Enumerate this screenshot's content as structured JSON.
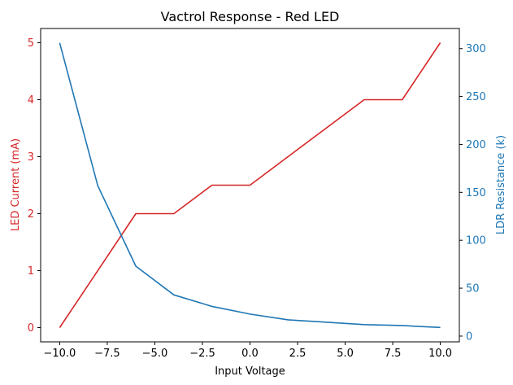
{
  "chart_data": {
    "type": "line",
    "title": "Vactrol Response - Red LED",
    "xlabel": "Input Voltage",
    "xlim": [
      -11.0,
      11.0
    ],
    "xticks": [
      -10.0,
      -7.5,
      -5.0,
      -2.5,
      0.0,
      2.5,
      5.0,
      7.5,
      10.0
    ],
    "xtick_labels": [
      "−10.0",
      "−7.5",
      "−5.0",
      "−2.5",
      "0.0",
      "2.5",
      "5.0",
      "7.5",
      "10.0"
    ],
    "axes": {
      "left": {
        "label": "LED Current (mA)",
        "color": "#d62728",
        "ylim": [
          -0.25,
          5.25
        ],
        "ticks": [
          0,
          1,
          2,
          3,
          4,
          5
        ],
        "tick_labels": [
          "0",
          "1",
          "2",
          "3",
          "4",
          "5"
        ]
      },
      "right": {
        "label": "LDR Resistance (k)",
        "color": "#1f77b4",
        "ylim": [
          -6,
          321
        ],
        "ticks": [
          0,
          50,
          100,
          150,
          200,
          250,
          300
        ],
        "tick_labels": [
          "0",
          "50",
          "100",
          "150",
          "200",
          "250",
          "300"
        ]
      }
    },
    "series": [
      {
        "axis": "left",
        "color": "#d62728",
        "x": [
          -10,
          -6,
          -4,
          -2,
          0,
          6,
          8,
          10
        ],
        "values": [
          0,
          2,
          2,
          2.5,
          2.5,
          4,
          4,
          5
        ]
      },
      {
        "axis": "right",
        "color": "#1f77b4",
        "x": [
          -10,
          -8,
          -6,
          -4,
          -2,
          0,
          2,
          6,
          8,
          10
        ],
        "values": [
          306,
          157,
          73,
          43,
          31,
          23,
          17,
          12,
          11,
          9
        ]
      }
    ],
    "grid": false,
    "legend": "none"
  }
}
